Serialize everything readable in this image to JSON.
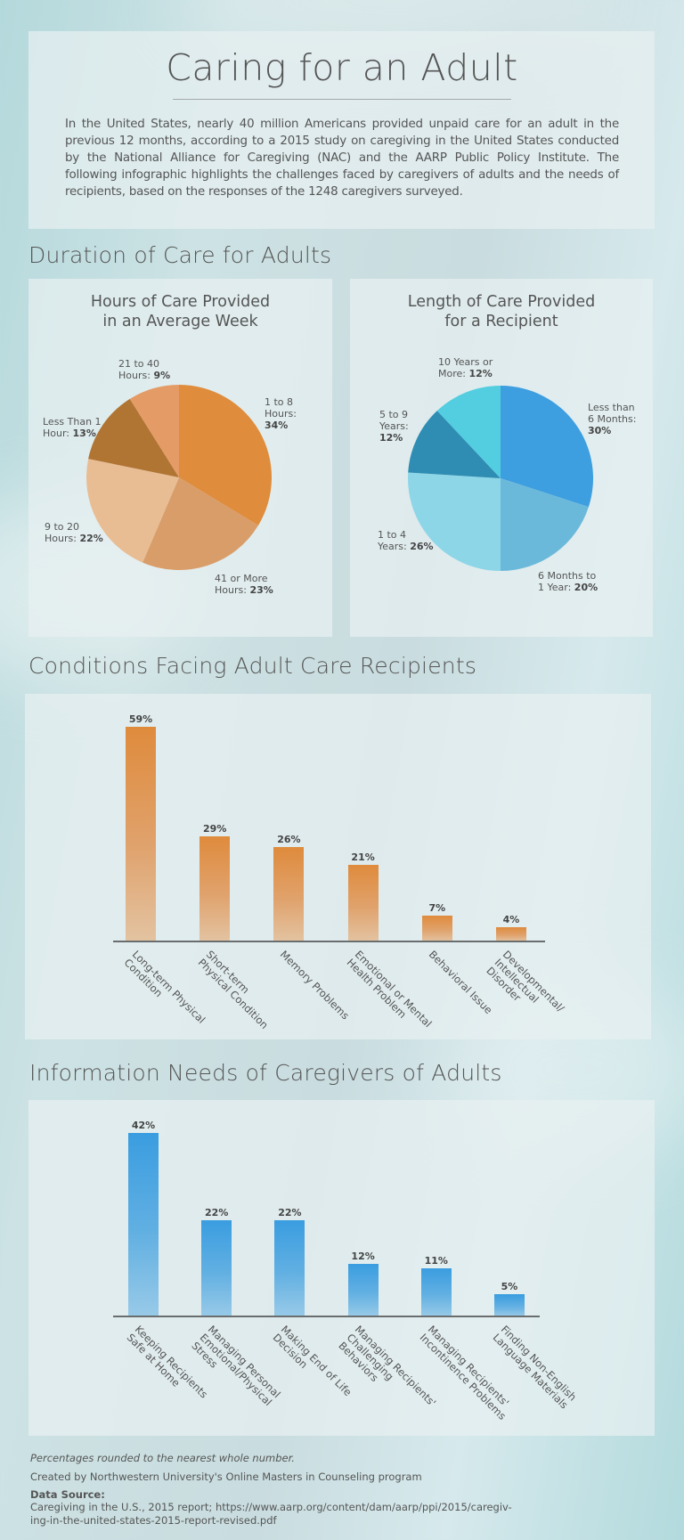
{
  "header": {
    "title": "Caring for an Adult",
    "intro": "In the United States, nearly 40 million Americans provided unpaid care for an adult in the previous 12 months, according to a 2015 study on caregiving in the United States conducted by the National Alliance for Caregiving (NAC) and the AARP Public Policy Institute. The following infographic highlights the challenges faced by caregivers of adults and the needs of recipients, based on the responses of the 1248 caregivers surveyed."
  },
  "sections": {
    "duration": "Duration of Care for Adults",
    "conditions": "Conditions Facing Adult Care Recipients",
    "information": "Information Needs of Caregivers of Adults"
  },
  "chart_data": [
    {
      "type": "pie",
      "title": "Hours of Care Provided in an Average Week",
      "title_lines": [
        "Hours of Care Provided",
        "in an Average Week"
      ],
      "slices": [
        {
          "label": "1 to 8 Hours",
          "label_lines": [
            "1 to 8",
            "Hours:"
          ],
          "value": 34,
          "value_text": "34%",
          "color": "#DF8C3C"
        },
        {
          "label": "41 or More Hours",
          "label_lines": [
            "41 or More",
            "Hours: "
          ],
          "value": 23,
          "value_text": "23%",
          "color": "#D99D6A"
        },
        {
          "label": "9 to 20 Hours",
          "label_lines": [
            "9 to 20",
            "Hours: "
          ],
          "value": 22,
          "value_text": "22%",
          "color": "#E9BD93"
        },
        {
          "label": "Less Than 1 Hour",
          "label_lines": [
            "Less Than 1",
            "Hour: "
          ],
          "value": 13,
          "value_text": "13%",
          "color": "#B07433"
        },
        {
          "label": "21 to 40 Hours",
          "label_lines": [
            "21 to 40",
            "Hours: "
          ],
          "value": 9,
          "value_text": "9%",
          "color": "#E59B66"
        }
      ]
    },
    {
      "type": "pie",
      "title": "Length of Care Provided for a Recipient",
      "title_lines": [
        "Length of Care Provided",
        "for a Recipient"
      ],
      "slices": [
        {
          "label": "Less than 6 Months",
          "label_lines": [
            "Less than",
            "6 Months:"
          ],
          "value": 30,
          "value_text": "30%",
          "color": "#3D9EE0"
        },
        {
          "label": "6 Months to 1 Year",
          "label_lines": [
            "6 Months to",
            "1 Year: "
          ],
          "value": 20,
          "value_text": "20%",
          "color": "#6BB9DA"
        },
        {
          "label": "1 to 4 Years",
          "label_lines": [
            "1 to 4",
            "Years: "
          ],
          "value": 26,
          "value_text": "26%",
          "color": "#8DD6E8"
        },
        {
          "label": "5 to 9 Years",
          "label_lines": [
            "5 to 9",
            "Years:"
          ],
          "value": 12,
          "value_text": "12%",
          "color": "#2F8DB3"
        },
        {
          "label": "10 Years or More",
          "label_lines": [
            "10 Years or",
            "More: "
          ],
          "value": 12,
          "value_text": "12%",
          "color": "#53CDE0"
        }
      ]
    },
    {
      "type": "bar",
      "title": "Conditions Facing Adult Care Recipients",
      "categories": [
        "Long-term Physical Condition",
        "Short-term Physical Condition",
        "Memory Problems",
        "Emotional or Mental Health Problem",
        "Behavioral Issue",
        "Developmental/ Intellectual Disorder"
      ],
      "category_lines": [
        [
          "Long-term Physical",
          "Condition"
        ],
        [
          "Short-term",
          "Physical Condition"
        ],
        [
          "Memory Problems"
        ],
        [
          "Emotional or Mental",
          "Health Problem"
        ],
        [
          "Behavioral Issue"
        ],
        [
          "Developmental/",
          "Intellectual",
          "Disorder"
        ]
      ],
      "values": [
        59,
        29,
        26,
        21,
        7,
        4
      ],
      "value_labels": [
        "59%",
        "29%",
        "26%",
        "21%",
        "7%",
        "4%"
      ],
      "ylim": [
        0,
        59
      ],
      "color": "#DF8B3C",
      "grid": false
    },
    {
      "type": "bar",
      "title": "Information Needs of Caregivers of Adults",
      "categories": [
        "Keeping Recipients Safe at Home",
        "Managing Personal Emotional/Physical Stress",
        "Making End of Life Decision",
        "Managing Recipients' Challenging Behaviors",
        "Managing Recipients' Incontinence Problems",
        "Finding Non-English Language Materials"
      ],
      "category_lines": [
        [
          "Keeping Recipients",
          "Safe at Home"
        ],
        [
          "Managing Personal",
          "Emotional/Physical",
          "Stress"
        ],
        [
          "Making End of Life",
          "Decision"
        ],
        [
          "Managing Recipients'",
          "Challenging",
          "Behaviors"
        ],
        [
          "Managing Recipients'",
          "Incontinence Problems"
        ],
        [
          "Finding Non-English",
          "Language Materials"
        ]
      ],
      "values": [
        42,
        22,
        22,
        12,
        11,
        5
      ],
      "value_labels": [
        "42%",
        "22%",
        "22%",
        "12%",
        "11%",
        "5%"
      ],
      "ylim": [
        0,
        42
      ],
      "color": "#3A9DE0",
      "grid": false
    }
  ],
  "footer": {
    "note": "Percentages rounded to the nearest whole number.",
    "credit": "Created by Northwestern University's Online Masters in Counseling program",
    "source_heading": "Data Source:",
    "source_line1": "Caregiving in the U.S., 2015 report; https://www.aarp.org/content/dam/aarp/ppi/2015/caregiv-",
    "source_line2": "ing-in-the-united-states-2015-report-revised.pdf"
  }
}
